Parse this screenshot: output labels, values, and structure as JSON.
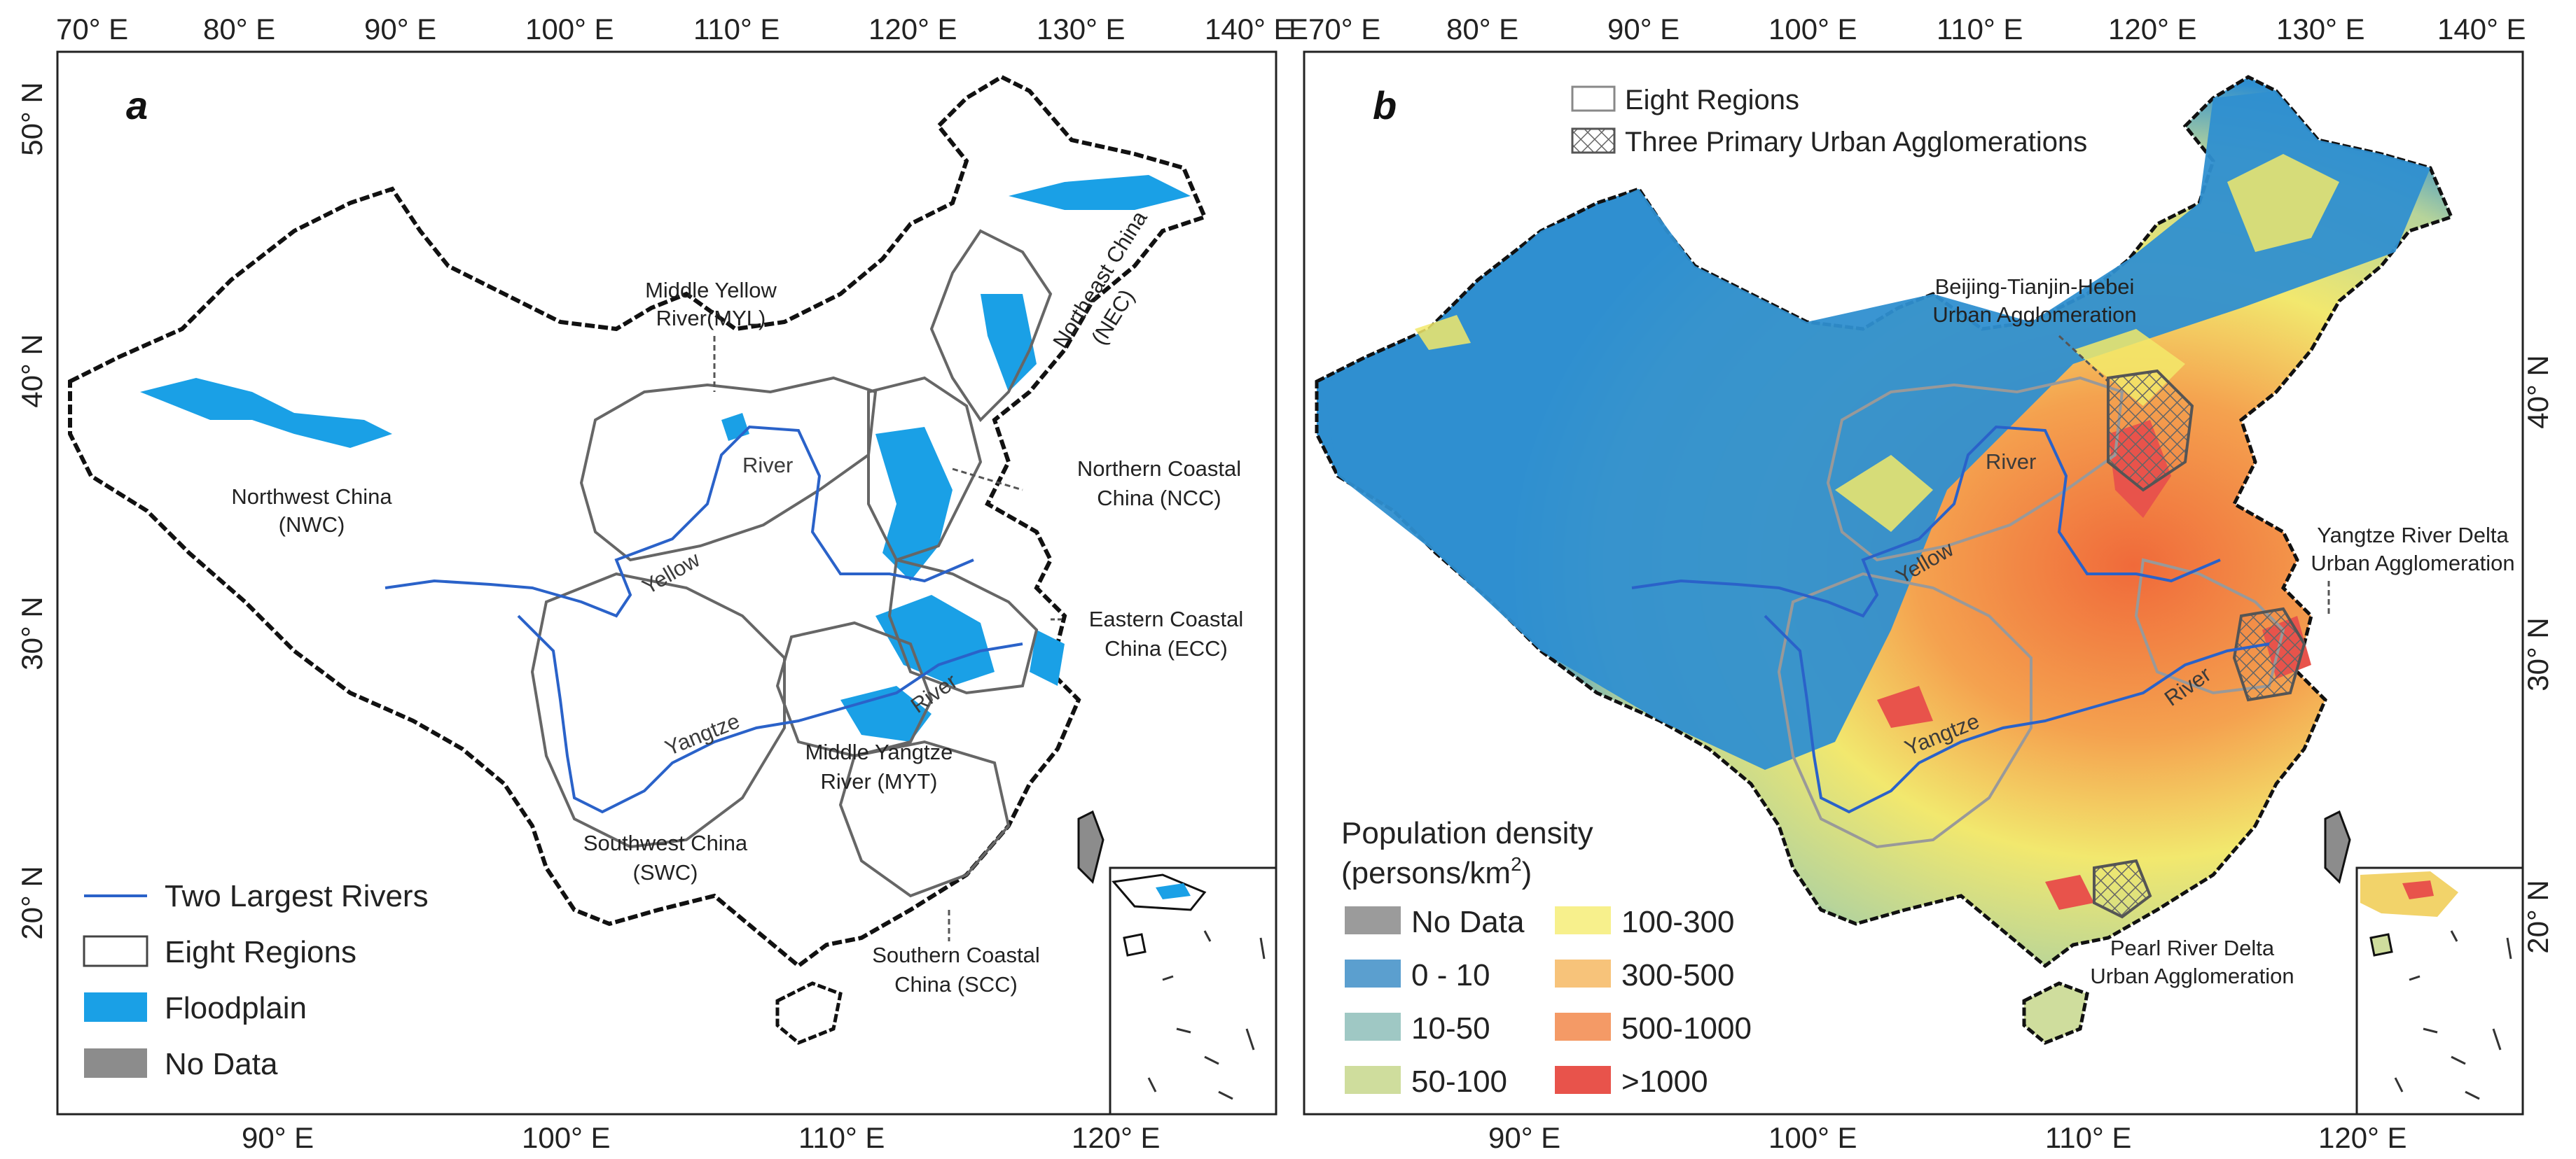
{
  "panel_a": {
    "letter": "a",
    "top_ticks": [
      "70° E",
      "80° E",
      "90° E",
      "100° E",
      "110° E",
      "120° E",
      "130° E",
      "140° E"
    ],
    "bottom_ticks": [
      "90° E",
      "100° E",
      "110° E",
      "120° E"
    ],
    "left_ticks": [
      "50° N",
      "40° N",
      "30° N",
      "20° N"
    ],
    "regions": {
      "myl": [
        "Middle Yellow",
        "River(MYL)"
      ],
      "nec": [
        "Northeast China",
        "(NEC)"
      ],
      "nwc": [
        "Northwest China",
        "(NWC)"
      ],
      "ncc": [
        "Northern Coastal",
        "China (NCC)"
      ],
      "ecc": [
        "Eastern Coastal",
        "China (ECC)"
      ],
      "myt": [
        "Middle Yangtze",
        "River (MYT)"
      ],
      "swc": [
        "Southwest China",
        "(SWC)"
      ],
      "scc": [
        "Southern Coastal",
        "China (SCC)"
      ]
    },
    "rivers": {
      "yellow": "Yellow",
      "river1": "River",
      "yangtze": "Yangtze",
      "river2": "River"
    },
    "legend": {
      "rivers": "Two Largest Rivers",
      "regions": "Eight Regions",
      "floodplain": "Floodplain",
      "nodata": "No Data"
    }
  },
  "panel_b": {
    "letter": "b",
    "top_ticks": [
      "E70° E",
      "80° E",
      "90° E",
      "100° E",
      "110° E",
      "120° E",
      "130° E",
      "140° E"
    ],
    "bottom_ticks": [
      "90° E",
      "100° E",
      "110° E",
      "120° E"
    ],
    "right_ticks": [
      "40° N",
      "30° N",
      "20° N"
    ],
    "top_legend": {
      "regions": "Eight Regions",
      "agglomerations": "Three Primary Urban Agglomerations"
    },
    "agglomerations": {
      "bth": [
        "Beijing-Tianjin-Hebei",
        "Urban Agglomeration"
      ],
      "yrd": [
        "Yangtze River Delta",
        "Urban Agglomeration"
      ],
      "prd": [
        "Pearl River Delta",
        "Urban Agglomeration"
      ]
    },
    "rivers": {
      "yellow": "Yellow",
      "river1": "River",
      "yangtze": "Yangtze",
      "river2": "River"
    },
    "legend": {
      "title": "Population density",
      "units_prefix": "(persons/km",
      "units_sup": "2",
      "units_suffix": ")",
      "classes": [
        {
          "label": "No Data",
          "color": "#9b9b9b"
        },
        {
          "label": "0 - 10",
          "color": "#5b9fcf"
        },
        {
          "label": "10-50",
          "color": "#9fc8c4"
        },
        {
          "label": "50-100",
          "color": "#cfdd9d"
        },
        {
          "label": "100-300",
          "color": "#f7f08c"
        },
        {
          "label": "300-500",
          "color": "#f7c37a"
        },
        {
          "label": "500-1000",
          "color": "#f49a66"
        },
        {
          "label": ">1000",
          "color": "#e8534b"
        }
      ]
    }
  },
  "colors": {
    "floodplain": "#1aa0e6",
    "river": "#2a62c9",
    "region_border": "#666666",
    "nodata": "#8c8c8c",
    "pop_low": "#2f8fd0",
    "pop_mid": "#f2e96a",
    "pop_high": "#f0803c"
  }
}
